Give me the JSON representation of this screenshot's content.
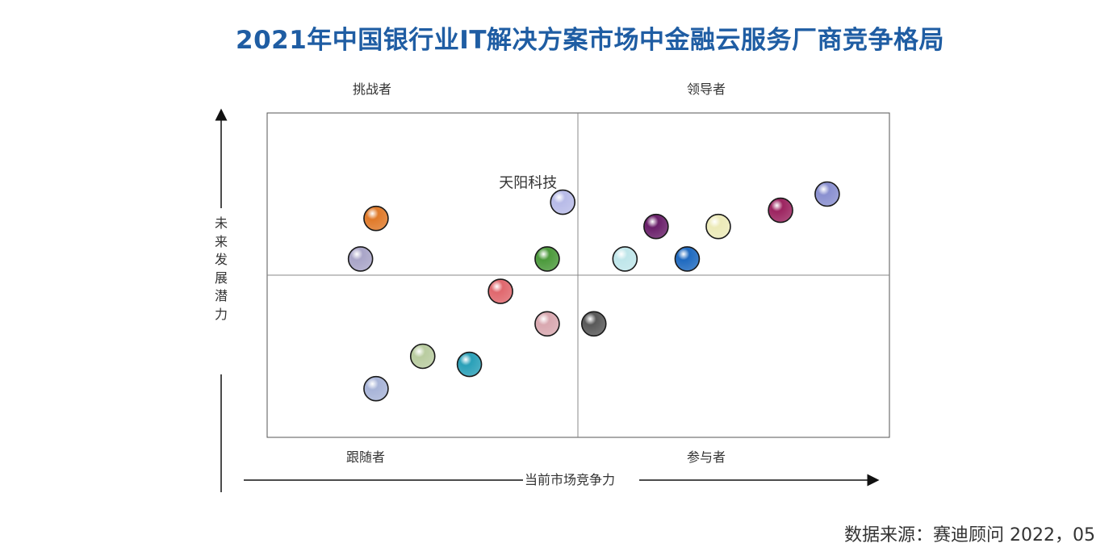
{
  "chart_data": {
    "type": "scatter",
    "title": "2021年中国银行业IT解决方案市场中金融云服务厂商竞争格局",
    "xlabel": "当前市场竞争力",
    "ylabel": "未来发展潜力",
    "quadrants": {
      "top_left": "挑战者",
      "top_right": "领导者",
      "bottom_left": "跟随者",
      "bottom_right": "参与者"
    },
    "xlim": [
      0,
      100
    ],
    "ylim": [
      0,
      100
    ],
    "midline_x": 50,
    "midline_y": 50,
    "points": [
      {
        "x": 17.5,
        "y": 67.5,
        "color": "#e07a2a",
        "label": ""
      },
      {
        "x": 15,
        "y": 55,
        "color": "#a9a5c8",
        "label": ""
      },
      {
        "x": 47.5,
        "y": 72.5,
        "color": "#b8bbe8",
        "label": "天阳科技"
      },
      {
        "x": 45,
        "y": 55,
        "color": "#4c9a3c",
        "label": ""
      },
      {
        "x": 37.5,
        "y": 45,
        "color": "#e0686e",
        "label": ""
      },
      {
        "x": 45,
        "y": 35,
        "color": "#d9a8b0",
        "label": ""
      },
      {
        "x": 25,
        "y": 25,
        "color": "#b9cca0",
        "label": ""
      },
      {
        "x": 32.5,
        "y": 22.5,
        "color": "#2aa0b8",
        "label": ""
      },
      {
        "x": 17.5,
        "y": 15,
        "color": "#a8b4d8",
        "label": ""
      },
      {
        "x": 52.5,
        "y": 35,
        "color": "#595959",
        "label": ""
      },
      {
        "x": 57.5,
        "y": 55,
        "color": "#bfe6ea",
        "label": ""
      },
      {
        "x": 62.5,
        "y": 65,
        "color": "#6a1f6a",
        "label": ""
      },
      {
        "x": 67.5,
        "y": 55,
        "color": "#1f6ac0",
        "label": ""
      },
      {
        "x": 72.5,
        "y": 65,
        "color": "#eceab8",
        "label": ""
      },
      {
        "x": 82.5,
        "y": 70,
        "color": "#9c2460",
        "label": ""
      },
      {
        "x": 90,
        "y": 75,
        "color": "#8a90d0",
        "label": ""
      }
    ]
  },
  "source": "数据来源：赛迪顾问 2022，05"
}
